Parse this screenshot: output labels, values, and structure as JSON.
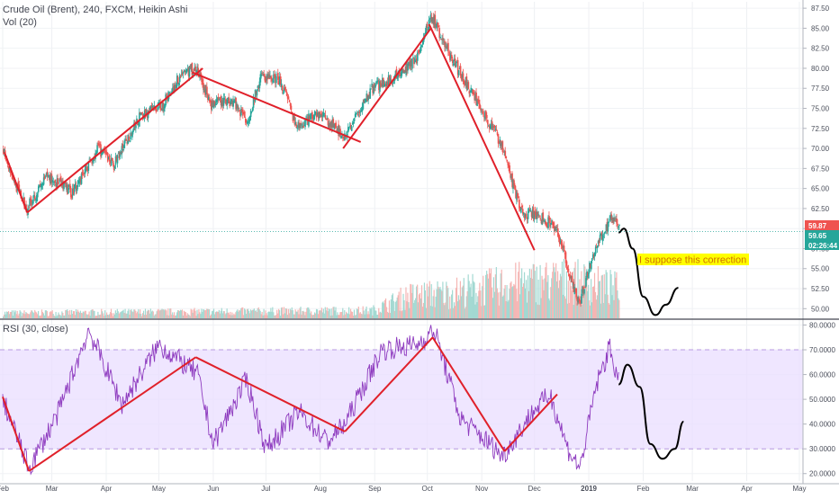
{
  "header": {
    "symbol_line": "Crude Oil (Brent), 240, FXCM, Heikin Ashi",
    "volume_line": "Vol (20)"
  },
  "rsi": {
    "title": "RSI (30, close)",
    "ticks": [
      "80.0000",
      "70.0000",
      "60.0000",
      "50.0000",
      "40.0000",
      "30.0000",
      "20.0000"
    ],
    "ylim": [
      17,
      82
    ],
    "band": [
      30,
      70
    ],
    "band_color": "#e9ddff",
    "line_color": "#8e3bbf"
  },
  "annotation": {
    "text": "I suppose this correction",
    "bg": "#ffff00",
    "color": "#d07000"
  },
  "badges": {
    "last_price": "59.87",
    "bid": "59.65",
    "countdown": "02:26:44",
    "last_color": "#ef5350",
    "bid_color": "#26a69a"
  },
  "colors": {
    "up": "#26a69a",
    "down": "#ef5350",
    "trend": "#e0202a",
    "projection": "#000000"
  },
  "chart_data": {
    "type": "candlestick",
    "title": "Crude Oil (Brent), 240, FXCM, Heikin Ashi",
    "x_ticks": [
      "Feb",
      "Mar",
      "Apr",
      "May",
      "Jun",
      "Jul",
      "Aug",
      "Sep",
      "Oct",
      "Nov",
      "Dec",
      "2019",
      "Feb",
      "Mar",
      "Apr",
      "May"
    ],
    "y_ticks": [
      "87.50",
      "85.00",
      "82.50",
      "80.00",
      "77.50",
      "75.00",
      "72.50",
      "70.00",
      "67.50",
      "65.00",
      "62.50",
      "60.00",
      "57.50",
      "55.00",
      "52.50",
      "50.00"
    ],
    "ylim": [
      48.8,
      88.3
    ],
    "price_path": [
      {
        "date": "2018-02-01",
        "value": 70.0
      },
      {
        "date": "2018-02-07",
        "value": 66.0
      },
      {
        "date": "2018-02-14",
        "value": 62.5
      },
      {
        "date": "2018-02-26",
        "value": 66.5
      },
      {
        "date": "2018-03-12",
        "value": 64.5
      },
      {
        "date": "2018-03-27",
        "value": 70.0
      },
      {
        "date": "2018-04-05",
        "value": 68.0
      },
      {
        "date": "2018-04-20",
        "value": 74.0
      },
      {
        "date": "2018-05-03",
        "value": 75.5
      },
      {
        "date": "2018-05-14",
        "value": 79.5
      },
      {
        "date": "2018-05-22",
        "value": 80.0
      },
      {
        "date": "2018-05-30",
        "value": 75.5
      },
      {
        "date": "2018-06-12",
        "value": 76.0
      },
      {
        "date": "2018-06-20",
        "value": 73.5
      },
      {
        "date": "2018-06-28",
        "value": 79.0
      },
      {
        "date": "2018-07-09",
        "value": 78.5
      },
      {
        "date": "2018-07-18",
        "value": 72.5
      },
      {
        "date": "2018-07-30",
        "value": 74.5
      },
      {
        "date": "2018-08-15",
        "value": 71.5
      },
      {
        "date": "2018-08-30",
        "value": 77.5
      },
      {
        "date": "2018-09-12",
        "value": 79.0
      },
      {
        "date": "2018-09-24",
        "value": 81.0
      },
      {
        "date": "2018-10-03",
        "value": 86.5
      },
      {
        "date": "2018-10-15",
        "value": 81.0
      },
      {
        "date": "2018-10-31",
        "value": 75.0
      },
      {
        "date": "2018-11-12",
        "value": 70.5
      },
      {
        "date": "2018-11-23",
        "value": 62.0
      },
      {
        "date": "2018-12-04",
        "value": 61.5
      },
      {
        "date": "2018-12-13",
        "value": 60.0
      },
      {
        "date": "2018-12-26",
        "value": 50.5
      },
      {
        "date": "2019-01-04",
        "value": 57.5
      },
      {
        "date": "2019-01-14",
        "value": 61.5
      },
      {
        "date": "2019-01-18",
        "value": 60.0
      }
    ],
    "volume_ylim": [
      0,
      100
    ],
    "volume_path": [
      {
        "date": "2018-02-01",
        "value": 8
      },
      {
        "date": "2018-08-30",
        "value": 12
      },
      {
        "date": "2018-09-20",
        "value": 35
      },
      {
        "date": "2018-10-15",
        "value": 40
      },
      {
        "date": "2018-11-20",
        "value": 55
      },
      {
        "date": "2018-12-20",
        "value": 60
      },
      {
        "date": "2019-01-18",
        "value": 45
      }
    ],
    "trend_lines": [
      {
        "from": {
          "date": "2018-02-02",
          "value": 69.5
        },
        "to": {
          "date": "2018-02-15",
          "value": 62.0
        }
      },
      {
        "from": {
          "date": "2018-02-15",
          "value": 62.0
        },
        "to": {
          "date": "2018-05-26",
          "value": 80.0
        }
      },
      {
        "from": {
          "date": "2018-05-20",
          "value": 79.5
        },
        "to": {
          "date": "2018-08-24",
          "value": 70.8
        }
      },
      {
        "from": {
          "date": "2018-08-14",
          "value": 70.0
        },
        "to": {
          "date": "2018-10-03",
          "value": 85.0
        }
      },
      {
        "from": {
          "date": "2018-10-02",
          "value": 85.5
        },
        "to": {
          "date": "2018-12-01",
          "value": 57.3
        }
      }
    ],
    "rsi_path": [
      {
        "date": "2018-02-01",
        "value": 50
      },
      {
        "date": "2018-02-16",
        "value": 22
      },
      {
        "date": "2018-03-05",
        "value": 45
      },
      {
        "date": "2018-03-22",
        "value": 78
      },
      {
        "date": "2018-04-10",
        "value": 48
      },
      {
        "date": "2018-05-01",
        "value": 72
      },
      {
        "date": "2018-05-23",
        "value": 60
      },
      {
        "date": "2018-06-01",
        "value": 32
      },
      {
        "date": "2018-06-20",
        "value": 58
      },
      {
        "date": "2018-07-01",
        "value": 30
      },
      {
        "date": "2018-07-20",
        "value": 45
      },
      {
        "date": "2018-08-05",
        "value": 33
      },
      {
        "date": "2018-08-15",
        "value": 40
      },
      {
        "date": "2018-09-05",
        "value": 70
      },
      {
        "date": "2018-09-25",
        "value": 72
      },
      {
        "date": "2018-10-05",
        "value": 78
      },
      {
        "date": "2018-10-20",
        "value": 42
      },
      {
        "date": "2018-11-01",
        "value": 35
      },
      {
        "date": "2018-11-13",
        "value": 27
      },
      {
        "date": "2018-11-30",
        "value": 45
      },
      {
        "date": "2018-12-10",
        "value": 52
      },
      {
        "date": "2018-12-20",
        "value": 30
      },
      {
        "date": "2018-12-27",
        "value": 22
      },
      {
        "date": "2019-01-05",
        "value": 55
      },
      {
        "date": "2019-01-13",
        "value": 71
      },
      {
        "date": "2019-01-18",
        "value": 57
      }
    ],
    "rsi_trend_lines": [
      {
        "from": {
          "date": "2018-02-01",
          "value": 51
        },
        "to": {
          "date": "2018-02-16",
          "value": 21
        }
      },
      {
        "from": {
          "date": "2018-02-16",
          "value": 21
        },
        "to": {
          "date": "2018-05-22",
          "value": 67
        }
      },
      {
        "from": {
          "date": "2018-05-22",
          "value": 67
        },
        "to": {
          "date": "2018-08-15",
          "value": 37
        }
      },
      {
        "from": {
          "date": "2018-08-15",
          "value": 37
        },
        "to": {
          "date": "2018-10-04",
          "value": 75
        }
      },
      {
        "from": {
          "date": "2018-10-04",
          "value": 75
        },
        "to": {
          "date": "2018-11-14",
          "value": 29
        }
      },
      {
        "from": {
          "date": "2018-11-14",
          "value": 29
        },
        "to": {
          "date": "2018-12-14",
          "value": 52
        }
      }
    ],
    "projection_price": [
      {
        "date": "2019-01-18",
        "value": 59.5
      },
      {
        "date": "2019-01-21",
        "value": 60.0
      },
      {
        "date": "2019-01-26",
        "value": 57.5
      },
      {
        "date": "2019-02-01",
        "value": 51.5
      },
      {
        "date": "2019-02-08",
        "value": 49.2
      },
      {
        "date": "2019-02-14",
        "value": 50.5
      },
      {
        "date": "2019-02-21",
        "value": 52.6
      }
    ],
    "projection_rsi": [
      {
        "date": "2019-01-18",
        "value": 56
      },
      {
        "date": "2019-01-23",
        "value": 64
      },
      {
        "date": "2019-01-30",
        "value": 55
      },
      {
        "date": "2019-02-05",
        "value": 32
      },
      {
        "date": "2019-02-12",
        "value": 26
      },
      {
        "date": "2019-02-19",
        "value": 30
      },
      {
        "date": "2019-02-24",
        "value": 41
      }
    ]
  }
}
